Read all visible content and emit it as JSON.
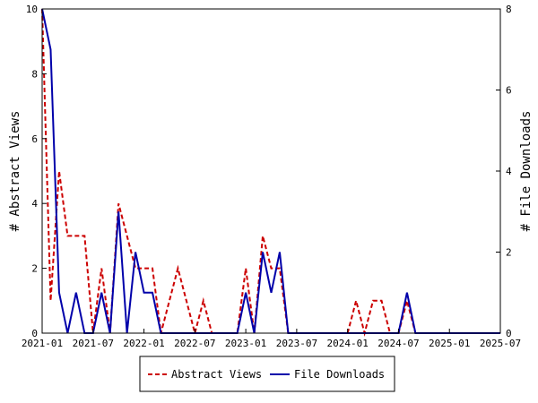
{
  "chart_data": {
    "type": "line",
    "ylabel_left": "# Abstract Views",
    "ylabel_right": "# File Downloads",
    "x_ticks": [
      "2021-01",
      "2021-07",
      "2022-01",
      "2022-07",
      "2023-01",
      "2023-07",
      "2024-01",
      "2024-07",
      "2025-01",
      "2025-07"
    ],
    "y_left_ticks": [
      "0",
      "2",
      "4",
      "6",
      "8",
      "10"
    ],
    "y_right_ticks": [
      "0",
      "2",
      "4",
      "6",
      "8"
    ],
    "ylim_left": [
      0,
      10
    ],
    "ylim_right": [
      0,
      8
    ],
    "xlim": [
      "2021-01",
      "2025-07"
    ],
    "legend_position": "bottom",
    "series": [
      {
        "name": "Abstract Views",
        "axis": "left",
        "color": "#cc0000",
        "style": "dashed",
        "x": [
          "2021-01",
          "2021-02",
          "2021-03",
          "2021-04",
          "2021-05",
          "2021-06",
          "2021-07",
          "2021-08",
          "2021-09",
          "2021-10",
          "2021-11",
          "2021-12",
          "2022-01",
          "2022-02",
          "2022-03",
          "2022-04",
          "2022-05",
          "2022-06",
          "2022-07",
          "2022-08",
          "2022-09",
          "2022-10",
          "2022-11",
          "2022-12",
          "2023-01",
          "2023-02",
          "2023-03",
          "2023-04",
          "2023-05",
          "2023-06",
          "2023-07",
          "2023-08",
          "2023-09",
          "2023-10",
          "2023-11",
          "2023-12",
          "2024-01",
          "2024-02",
          "2024-03",
          "2024-04",
          "2024-05",
          "2024-06",
          "2024-07",
          "2024-08",
          "2024-09",
          "2024-10",
          "2024-11",
          "2024-12",
          "2025-01",
          "2025-02",
          "2025-03",
          "2025-04",
          "2025-05",
          "2025-06",
          "2025-07"
        ],
        "values": [
          10,
          1,
          5,
          3,
          3,
          3,
          0,
          2,
          0,
          4,
          3,
          2,
          2,
          2,
          0,
          1,
          2,
          1,
          0,
          1,
          0,
          0,
          0,
          0,
          2,
          0,
          3,
          2,
          2,
          0,
          0,
          0,
          0,
          0,
          0,
          0,
          0,
          1,
          0,
          1,
          1,
          0,
          0,
          1,
          0,
          0,
          0,
          0,
          0,
          0,
          0,
          0,
          0,
          0,
          0
        ]
      },
      {
        "name": "File Downloads",
        "axis": "right",
        "color": "#0000aa",
        "style": "solid",
        "x": [
          "2021-01",
          "2021-02",
          "2021-03",
          "2021-04",
          "2021-05",
          "2021-06",
          "2021-07",
          "2021-08",
          "2021-09",
          "2021-10",
          "2021-11",
          "2021-12",
          "2022-01",
          "2022-02",
          "2022-03",
          "2022-04",
          "2022-05",
          "2022-06",
          "2022-07",
          "2022-08",
          "2022-09",
          "2022-10",
          "2022-11",
          "2022-12",
          "2023-01",
          "2023-02",
          "2023-03",
          "2023-04",
          "2023-05",
          "2023-06",
          "2023-07",
          "2023-08",
          "2023-09",
          "2023-10",
          "2023-11",
          "2023-12",
          "2024-01",
          "2024-02",
          "2024-03",
          "2024-04",
          "2024-05",
          "2024-06",
          "2024-07",
          "2024-08",
          "2024-09",
          "2024-10",
          "2024-11",
          "2024-12",
          "2025-01",
          "2025-02",
          "2025-03",
          "2025-04",
          "2025-05",
          "2025-06",
          "2025-07"
        ],
        "values": [
          8,
          7,
          1,
          0,
          1,
          0,
          0,
          1,
          0,
          3,
          0,
          2,
          1,
          1,
          0,
          0,
          0,
          0,
          0,
          0,
          0,
          0,
          0,
          0,
          1,
          0,
          2,
          1,
          2,
          0,
          0,
          0,
          0,
          0,
          0,
          0,
          0,
          0,
          0,
          0,
          0,
          0,
          0,
          1,
          0,
          0,
          0,
          0,
          0,
          0,
          0,
          0,
          0,
          0,
          0
        ]
      }
    ]
  }
}
